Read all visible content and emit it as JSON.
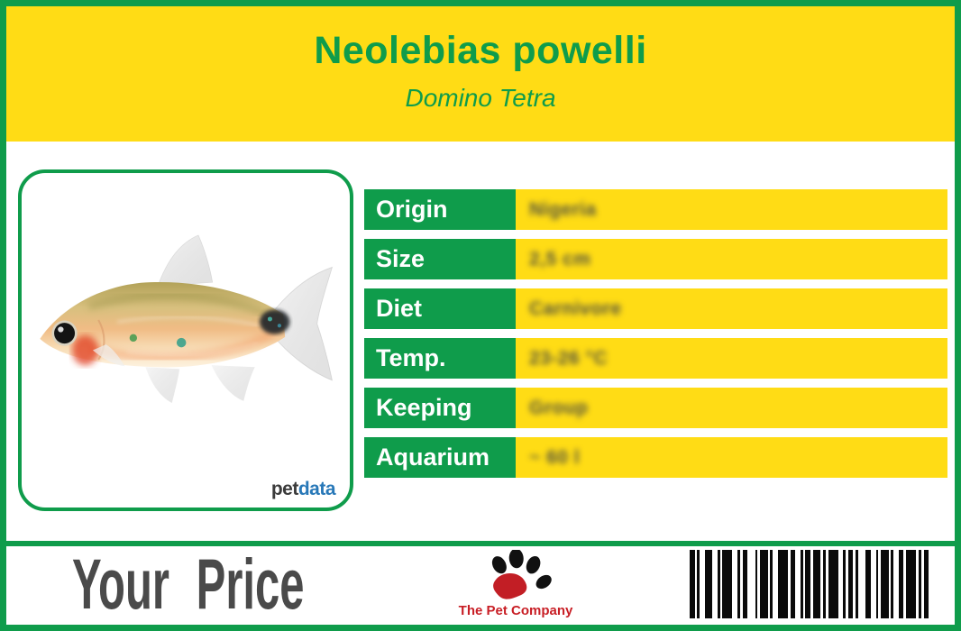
{
  "card": {
    "header": {
      "title": "Neolebias powelli",
      "subtitle": "Domino Tetra"
    },
    "photo": {
      "brand_pet": "pet",
      "brand_data": "data"
    },
    "table": {
      "rows": [
        {
          "label": "Origin",
          "value": "Nigeria"
        },
        {
          "label": "Size",
          "value": "2,5 cm"
        },
        {
          "label": "Diet",
          "value": "Carnivore"
        },
        {
          "label": "Temp.",
          "value": "23-26 °C"
        },
        {
          "label": "Keeping",
          "value": "Group"
        },
        {
          "label": "Aquarium",
          "value": "~ 60 l"
        }
      ]
    },
    "footer": {
      "price_label": "Your Price",
      "company": "The Pet Company",
      "barcode_pattern": [
        2,
        1,
        1,
        2,
        3,
        2,
        1,
        1,
        4,
        2,
        1,
        1,
        2,
        3,
        1,
        1,
        3,
        1,
        1,
        2,
        4,
        1,
        2,
        2,
        1,
        1,
        2,
        1,
        3,
        1,
        1,
        1,
        4,
        2,
        1,
        1,
        2,
        1,
        1,
        3,
        2,
        2,
        1,
        1,
        3,
        1,
        1,
        2,
        2,
        1,
        4,
        1,
        1,
        1,
        2
      ]
    },
    "colors": {
      "green": "#0F9C4B",
      "yellow": "#FFDC15",
      "price_text": "#4A4A4A",
      "company_red": "#C81E25",
      "petdata_dark": "#3B3B3B",
      "petdata_blue": "#2878B8",
      "barcode_black": "#0A0A0A"
    }
  }
}
